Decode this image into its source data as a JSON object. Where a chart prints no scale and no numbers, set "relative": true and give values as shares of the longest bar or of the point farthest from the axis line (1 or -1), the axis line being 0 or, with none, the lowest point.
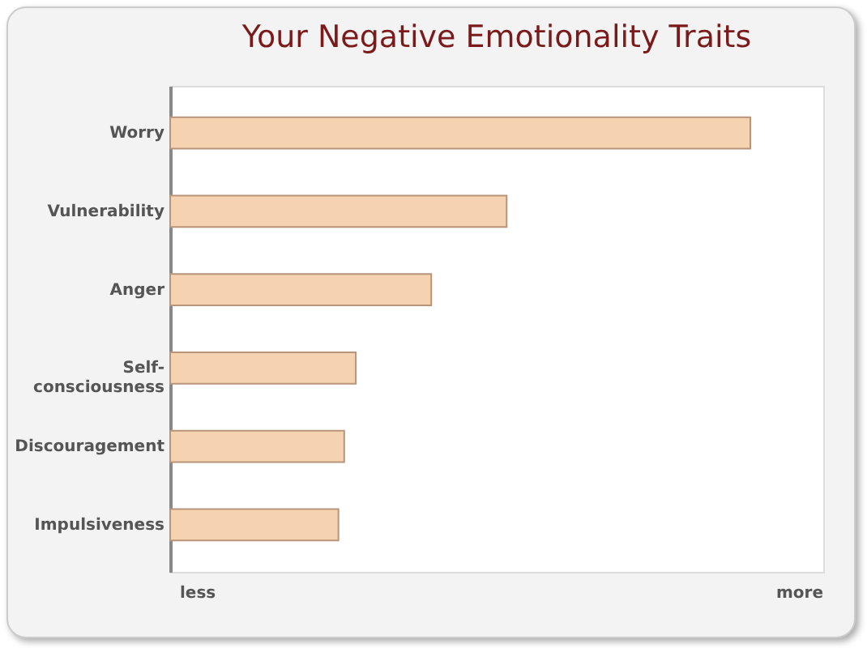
{
  "chart_data": {
    "type": "bar",
    "orientation": "horizontal",
    "title": "Your Negative Emotionality Traits",
    "categories": [
      "Worry",
      "Vulnerability",
      "Anger",
      "Self-consciousness",
      "Discouragement",
      "Impulsiveness"
    ],
    "values": [
      1,
      0.58,
      0.45,
      0.32,
      0.3,
      0.29
    ],
    "color": "#f6d3b0",
    "relative": true,
    "annotations": [
      "less",
      "more"
    ]
  }
}
